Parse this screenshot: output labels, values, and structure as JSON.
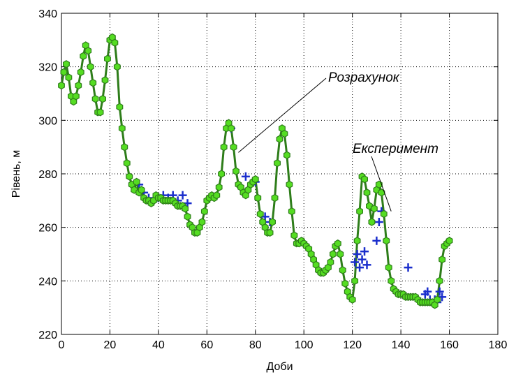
{
  "chart_data": {
    "type": "line",
    "title": "",
    "xlabel": "Доби",
    "ylabel": "Рівень, м",
    "xlim": [
      0,
      180
    ],
    "ylim": [
      220,
      340
    ],
    "xticks": [
      0,
      20,
      40,
      60,
      80,
      100,
      120,
      140,
      160,
      180
    ],
    "yticks": [
      220,
      240,
      260,
      280,
      300,
      320,
      340
    ],
    "grid": true,
    "annotations": [
      {
        "text": "Розрахунок",
        "points_to": [
          73,
          288
        ]
      },
      {
        "text": "Експеримент",
        "points_to": [
          136,
          266
        ]
      }
    ],
    "series": [
      {
        "name": "Розрахунок",
        "style": "line-with-markers",
        "color": "#2e7d1a",
        "marker_color": "#55dd22",
        "x": [
          0,
          1,
          2,
          3,
          4,
          5,
          6,
          7,
          8,
          9,
          10,
          11,
          12,
          13,
          14,
          15,
          16,
          17,
          18,
          19,
          20,
          21,
          22,
          23,
          24,
          25,
          26,
          27,
          28,
          29,
          30,
          31,
          32,
          33,
          34,
          35,
          36,
          37,
          38,
          39,
          40,
          41,
          42,
          43,
          44,
          45,
          46,
          47,
          48,
          49,
          50,
          51,
          52,
          53,
          54,
          55,
          56,
          57,
          58,
          59,
          60,
          61,
          62,
          63,
          64,
          65,
          66,
          67,
          68,
          69,
          70,
          71,
          72,
          73,
          74,
          75,
          76,
          77,
          78,
          79,
          80,
          81,
          82,
          83,
          84,
          85,
          86,
          87,
          88,
          89,
          90,
          91,
          92,
          93,
          94,
          95,
          96,
          97,
          98,
          99,
          100,
          101,
          102,
          103,
          104,
          105,
          106,
          107,
          108,
          109,
          110,
          111,
          112,
          113,
          114,
          115,
          116,
          117,
          118,
          119,
          120,
          121,
          122,
          123,
          124,
          125,
          126,
          127,
          128,
          129,
          130,
          131,
          132,
          133,
          134,
          135,
          136,
          137,
          138,
          139,
          140,
          141,
          142,
          143,
          144,
          145,
          146,
          147,
          148,
          149,
          150,
          151,
          152,
          153,
          154,
          155,
          156,
          157,
          158,
          159,
          160
        ],
        "y": [
          313,
          318,
          321,
          316,
          309,
          307,
          309,
          313,
          318,
          324,
          328,
          326,
          320,
          314,
          308,
          303,
          303,
          308,
          315,
          323,
          330,
          331,
          329,
          320,
          305,
          297,
          290,
          284,
          279,
          276,
          274,
          277,
          273,
          274,
          271,
          270,
          270,
          269,
          270,
          272,
          271,
          271,
          270,
          270,
          270,
          270,
          270,
          269,
          268,
          268,
          268,
          267,
          264,
          261,
          260,
          258,
          258,
          260,
          262,
          266,
          270,
          271,
          272,
          271,
          272,
          275,
          280,
          290,
          297,
          299,
          297,
          290,
          281,
          276,
          275,
          273,
          272,
          274,
          276,
          277,
          278,
          271,
          265,
          262,
          260,
          258,
          258,
          262,
          271,
          284,
          293,
          297,
          295,
          287,
          276,
          266,
          257,
          254,
          254,
          255,
          254,
          253,
          252,
          250,
          248,
          246,
          244,
          243,
          243,
          244,
          245,
          247,
          250,
          253,
          254,
          250,
          244,
          239,
          236,
          234,
          233,
          240,
          255,
          266,
          279,
          278,
          273,
          268,
          262,
          267,
          274,
          276,
          273,
          265,
          255,
          245,
          240,
          237,
          236,
          235,
          235,
          235,
          234,
          234,
          234,
          234,
          234,
          233,
          232,
          232,
          232,
          232,
          232,
          232,
          231,
          233,
          240,
          248,
          253,
          254,
          255
        ]
      },
      {
        "name": "Експеримент",
        "style": "markers-plus",
        "color": "#1a2ecc",
        "x": [
          32,
          34,
          36,
          38,
          40,
          42,
          44,
          46,
          48,
          50,
          52,
          70,
          76,
          80,
          84,
          86,
          121,
          122,
          123,
          124,
          125,
          126,
          130,
          131,
          132,
          143,
          150,
          151,
          152,
          154,
          155,
          156,
          157
        ],
        "y": [
          276,
          273,
          271,
          270,
          271,
          272,
          271,
          272,
          270,
          272,
          269,
          297,
          279,
          277,
          264,
          262,
          247,
          250,
          245,
          248,
          251,
          246,
          255,
          262,
          266,
          245,
          235,
          236,
          233,
          233,
          232,
          236,
          234
        ]
      }
    ]
  }
}
